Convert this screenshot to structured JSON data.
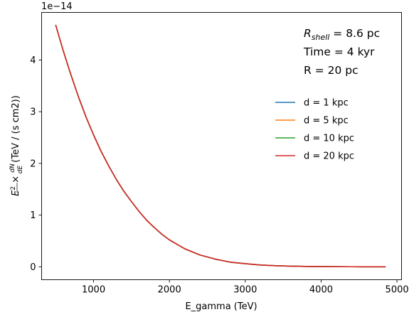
{
  "chart_data": {
    "type": "line",
    "title": "",
    "xlabel": "E_gamma (TeV)",
    "ylabel_parts": {
      "e_squared": "E",
      "e_exponent": "2",
      "times": " × ",
      "dn": "dN",
      "de": "dE",
      "units": " (TeV / (s cm2))"
    },
    "y_offset_text": "1e−14",
    "y_scale_factor": 1e-14,
    "xlim": [
      315,
      5060
    ],
    "ylim": [
      -2.5e-15,
      4.92e-14
    ],
    "xticks": [
      1000,
      2000,
      3000,
      4000,
      5000
    ],
    "xtick_labels": [
      "1000",
      "2000",
      "3000",
      "4000",
      "5000"
    ],
    "yticks": [
      0,
      1e-14,
      2e-14,
      3e-14,
      4e-14
    ],
    "ytick_labels": [
      "0",
      "1",
      "2",
      "3",
      "4"
    ],
    "grid": false,
    "legend_position": "center-right",
    "x": [
      500,
      600,
      700,
      800,
      900,
      1000,
      1100,
      1200,
      1300,
      1400,
      1500,
      1600,
      1700,
      1800,
      1900,
      2000,
      2200,
      2400,
      2600,
      2800,
      3000,
      3200,
      3400,
      3600,
      3800,
      4000,
      4200,
      4400,
      4600,
      4850
    ],
    "series": [
      {
        "name": "d = 1 kpc",
        "color": "#1f77b4",
        "values": [
          4.68e-14,
          4.18e-14,
          3.72e-14,
          3.29e-14,
          2.9e-14,
          2.55e-14,
          2.23e-14,
          1.95e-14,
          1.69e-14,
          1.46e-14,
          1.26e-14,
          1.07e-14,
          9e-15,
          7.6e-15,
          6.3e-15,
          5.2e-15,
          3.5e-15,
          2.3e-15,
          1.5e-15,
          9e-16,
          6e-16,
          3.5e-16,
          2e-16,
          1.2e-16,
          7e-17,
          4e-17,
          2e-17,
          1e-17,
          5e-18,
          2e-18
        ]
      },
      {
        "name": "d = 5 kpc",
        "color": "#ff7f0e",
        "values": [
          4.68e-14,
          4.18e-14,
          3.72e-14,
          3.29e-14,
          2.9e-14,
          2.55e-14,
          2.23e-14,
          1.95e-14,
          1.69e-14,
          1.46e-14,
          1.26e-14,
          1.07e-14,
          9e-15,
          7.6e-15,
          6.3e-15,
          5.2e-15,
          3.5e-15,
          2.3e-15,
          1.5e-15,
          9e-16,
          6e-16,
          3.5e-16,
          2e-16,
          1.2e-16,
          7e-17,
          4e-17,
          2e-17,
          1e-17,
          5e-18,
          2e-18
        ]
      },
      {
        "name": "d = 10 kpc",
        "color": "#2ca02c",
        "values": [
          4.68e-14,
          4.18e-14,
          3.72e-14,
          3.29e-14,
          2.9e-14,
          2.55e-14,
          2.23e-14,
          1.95e-14,
          1.69e-14,
          1.46e-14,
          1.26e-14,
          1.07e-14,
          9e-15,
          7.6e-15,
          6.3e-15,
          5.2e-15,
          3.5e-15,
          2.3e-15,
          1.5e-15,
          9e-16,
          6e-16,
          3.5e-16,
          2e-16,
          1.2e-16,
          7e-17,
          4e-17,
          2e-17,
          1e-17,
          5e-18,
          2e-18
        ]
      },
      {
        "name": "d = 20 kpc",
        "color": "#d62728",
        "values": [
          4.68e-14,
          4.18e-14,
          3.72e-14,
          3.29e-14,
          2.9e-14,
          2.55e-14,
          2.23e-14,
          1.95e-14,
          1.69e-14,
          1.46e-14,
          1.26e-14,
          1.07e-14,
          9e-15,
          7.6e-15,
          6.3e-15,
          5.2e-15,
          3.5e-15,
          2.3e-15,
          1.5e-15,
          9e-16,
          6e-16,
          3.5e-16,
          2e-16,
          1.2e-16,
          7e-17,
          4e-17,
          2e-17,
          1e-17,
          5e-18,
          2e-18
        ]
      }
    ],
    "annotations": {
      "rshell_symbol": "R",
      "rshell_subscript": "shell",
      "rshell_value": " = 8.6 pc",
      "time": "Time = 4 kyr",
      "radius": "R = 20 pc"
    }
  }
}
